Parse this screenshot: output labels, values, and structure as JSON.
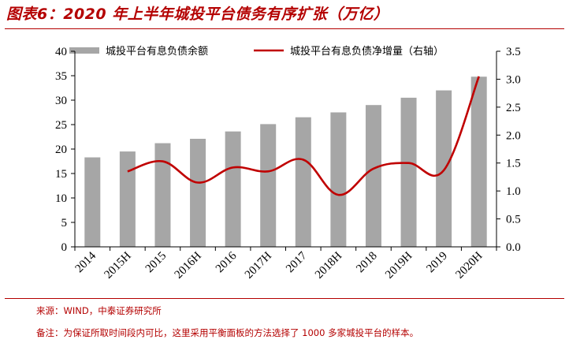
{
  "figure": {
    "title": "图表6：2020 年上半年城投平台债务有序扩张（万亿）",
    "source": "来源：WIND，中泰证券研究所",
    "memo": "备注：为保证所取时间段内可比，这里采用平衡面板的方法选择了 1000 多家城投平台的样本。"
  },
  "colors": {
    "bar": "#a6a6a6",
    "line": "#c00000",
    "accent": "#b40000"
  },
  "chart_data": {
    "type": "bar",
    "categories": [
      "2014",
      "2015H",
      "2015",
      "2016H",
      "2016",
      "2017H",
      "2017",
      "2018H",
      "2018",
      "2019H",
      "2019",
      "2020H"
    ],
    "series": [
      {
        "name": "城投平台有息负债余额",
        "type": "bar",
        "axis": "left",
        "values": [
          18.3,
          19.5,
          21.2,
          22.1,
          23.6,
          25.1,
          26.5,
          27.5,
          29.0,
          30.5,
          32.0,
          34.8
        ]
      },
      {
        "name": "城投平台有息负债净增量（右轴）",
        "type": "line",
        "axis": "right",
        "values": [
          null,
          1.35,
          1.53,
          1.15,
          1.42,
          1.35,
          1.56,
          0.93,
          1.4,
          1.5,
          1.37,
          3.05
        ]
      }
    ],
    "ylim_left": [
      0,
      40
    ],
    "yticks_left": [
      "0",
      "5",
      "10",
      "15",
      "20",
      "25",
      "30",
      "35",
      "40"
    ],
    "ylim_right": [
      0,
      3.5
    ],
    "yticks_right": [
      "0.0",
      "0.5",
      "1.0",
      "1.5",
      "2.0",
      "2.5",
      "3.0",
      "3.5"
    ],
    "grid": false,
    "legend_position": "top"
  }
}
